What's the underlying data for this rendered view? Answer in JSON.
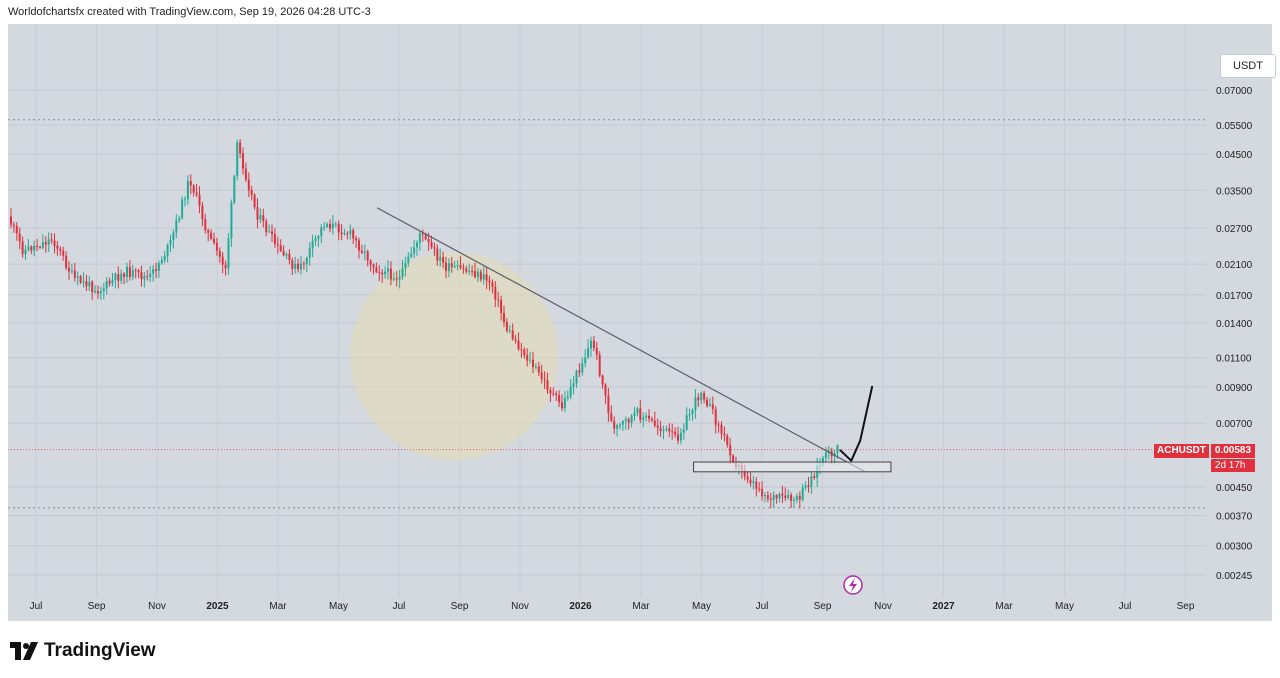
{
  "header": {
    "caption": "Worldofchartsfx created with TradingView.com, Sep 19, 2026 04:28 UTC-3"
  },
  "currency_label": "USDT",
  "brand": "TradingView",
  "price_tag": {
    "symbol": "ACHUSDT",
    "price": "0.00583",
    "countdown": "2d 17h"
  },
  "colors": {
    "background": "#d4d8df",
    "up": "#22ab94",
    "down": "#e0303d",
    "trendline": "#5a5e68",
    "drawing": "#111111"
  },
  "chart_data": {
    "type": "candlestick",
    "symbol": "ACHUSDT",
    "scale": "log",
    "y_ticks": [
      "0.07000",
      "0.05500",
      "0.04500",
      "0.03500",
      "0.02700",
      "0.02100",
      "0.01700",
      "0.01400",
      "0.01100",
      "0.00900",
      "0.00700",
      "0.00450",
      "0.00370",
      "0.00300",
      "0.00245"
    ],
    "x_ticks": [
      "Jul",
      "Sep",
      "Nov",
      "2025",
      "Mar",
      "May",
      "Jul",
      "Sep",
      "Nov",
      "2026",
      "Mar",
      "May",
      "Jul",
      "Sep",
      "Nov",
      "2027",
      "Mar",
      "May",
      "Jul",
      "Sep"
    ],
    "last_price": 0.00583,
    "price_path": [
      {
        "date": "2024-06-01",
        "price": 0.031
      },
      {
        "date": "2024-06-20",
        "price": 0.023
      },
      {
        "date": "2024-07-20",
        "price": 0.025
      },
      {
        "date": "2024-08-10",
        "price": 0.019
      },
      {
        "date": "2024-09-05",
        "price": 0.0175
      },
      {
        "date": "2024-10-01",
        "price": 0.02
      },
      {
        "date": "2024-10-25",
        "price": 0.019
      },
      {
        "date": "2024-11-15",
        "price": 0.024
      },
      {
        "date": "2024-12-05",
        "price": 0.038
      },
      {
        "date": "2024-12-25",
        "price": 0.025
      },
      {
        "date": "2025-01-10",
        "price": 0.0205
      },
      {
        "date": "2025-01-22",
        "price": 0.048
      },
      {
        "date": "2025-02-10",
        "price": 0.03
      },
      {
        "date": "2025-03-05",
        "price": 0.023
      },
      {
        "date": "2025-03-25",
        "price": 0.02
      },
      {
        "date": "2025-04-20",
        "price": 0.028
      },
      {
        "date": "2025-05-15",
        "price": 0.026
      },
      {
        "date": "2025-06-10",
        "price": 0.0205
      },
      {
        "date": "2025-07-05",
        "price": 0.019
      },
      {
        "date": "2025-07-25",
        "price": 0.026
      },
      {
        "date": "2025-08-20",
        "price": 0.0205
      },
      {
        "date": "2025-09-15",
        "price": 0.02
      },
      {
        "date": "2025-10-05",
        "price": 0.0185
      },
      {
        "date": "2025-10-20",
        "price": 0.0135
      },
      {
        "date": "2025-11-15",
        "price": 0.0105
      },
      {
        "date": "2025-12-15",
        "price": 0.0078
      },
      {
        "date": "2026-01-15",
        "price": 0.0125
      },
      {
        "date": "2026-02-05",
        "price": 0.0066
      },
      {
        "date": "2026-03-01",
        "price": 0.0075
      },
      {
        "date": "2026-04-10",
        "price": 0.0063
      },
      {
        "date": "2026-05-05",
        "price": 0.0088
      },
      {
        "date": "2026-06-10",
        "price": 0.0052
      },
      {
        "date": "2026-07-10",
        "price": 0.0042
      },
      {
        "date": "2026-08-10",
        "price": 0.0041
      },
      {
        "date": "2026-09-05",
        "price": 0.0055
      },
      {
        "date": "2026-09-19",
        "price": 0.00583
      }
    ],
    "annotations": {
      "trendline": {
        "from": {
          "date": "2025-06-10",
          "price": 0.031
        },
        "to": {
          "date": "2026-10-15",
          "price": 0.005
        }
      },
      "support_zone": {
        "from_date": "2026-04-25",
        "to_date": "2026-11-10",
        "low": 0.005,
        "high": 0.00535
      },
      "dotted_lines": [
        0.057,
        0.0039
      ],
      "projection": [
        {
          "date": "2026-09-20",
          "price": 0.0058
        },
        {
          "date": "2026-10-01",
          "price": 0.0054
        },
        {
          "date": "2026-10-10",
          "price": 0.0062
        },
        {
          "date": "2026-10-22",
          "price": 0.009
        }
      ]
    }
  }
}
